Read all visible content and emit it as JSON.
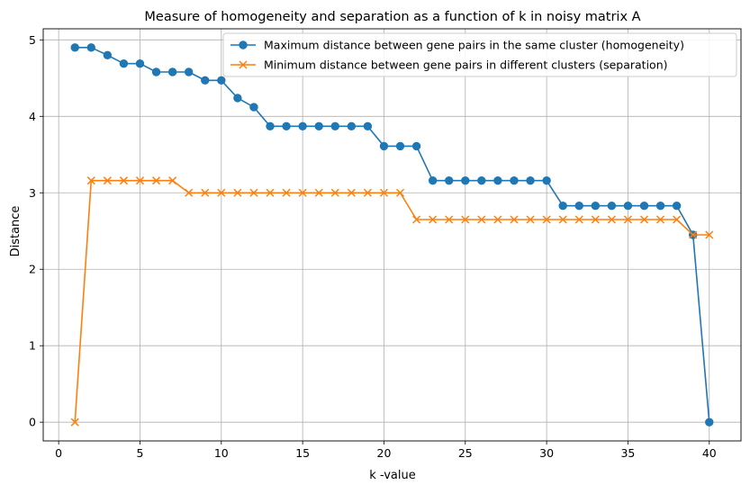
{
  "chart_data": {
    "type": "line",
    "title": "Measure of homogeneity and separation as a function of k in noisy matrix A",
    "xlabel": "k -value",
    "ylabel": "Distance",
    "xlim": [
      -0.95,
      41.95
    ],
    "ylim": [
      -0.245,
      5.145
    ],
    "xticks": [
      0,
      5,
      10,
      15,
      20,
      25,
      30,
      35,
      40
    ],
    "yticks": [
      0,
      1,
      2,
      3,
      4,
      5
    ],
    "grid": true,
    "legend_position": "upper right",
    "x": [
      1,
      2,
      3,
      4,
      5,
      6,
      7,
      8,
      9,
      10,
      11,
      12,
      13,
      14,
      15,
      16,
      17,
      18,
      19,
      20,
      21,
      22,
      23,
      24,
      25,
      26,
      27,
      28,
      29,
      30,
      31,
      32,
      33,
      34,
      35,
      36,
      37,
      38,
      39,
      40
    ],
    "series": [
      {
        "name": "Maximum distance between gene pairs in the same cluster (homogeneity)",
        "color": "#1f77b4",
        "marker": "circle",
        "values": [
          4.9,
          4.9,
          4.8,
          4.69,
          4.69,
          4.58,
          4.58,
          4.58,
          4.47,
          4.47,
          4.24,
          4.12,
          3.87,
          3.87,
          3.87,
          3.87,
          3.87,
          3.87,
          3.87,
          3.61,
          3.61,
          3.61,
          3.16,
          3.16,
          3.16,
          3.16,
          3.16,
          3.16,
          3.16,
          3.16,
          2.83,
          2.83,
          2.83,
          2.83,
          2.83,
          2.83,
          2.83,
          2.83,
          2.45,
          0.0
        ]
      },
      {
        "name": "Minimum distance between gene pairs in different clusters (separation)",
        "color": "#ff7f0e",
        "marker": "x",
        "values": [
          0.0,
          3.16,
          3.16,
          3.16,
          3.16,
          3.16,
          3.16,
          3.0,
          3.0,
          3.0,
          3.0,
          3.0,
          3.0,
          3.0,
          3.0,
          3.0,
          3.0,
          3.0,
          3.0,
          3.0,
          3.0,
          2.65,
          2.65,
          2.65,
          2.65,
          2.65,
          2.65,
          2.65,
          2.65,
          2.65,
          2.65,
          2.65,
          2.65,
          2.65,
          2.65,
          2.65,
          2.65,
          2.65,
          2.45,
          2.45
        ]
      }
    ]
  }
}
